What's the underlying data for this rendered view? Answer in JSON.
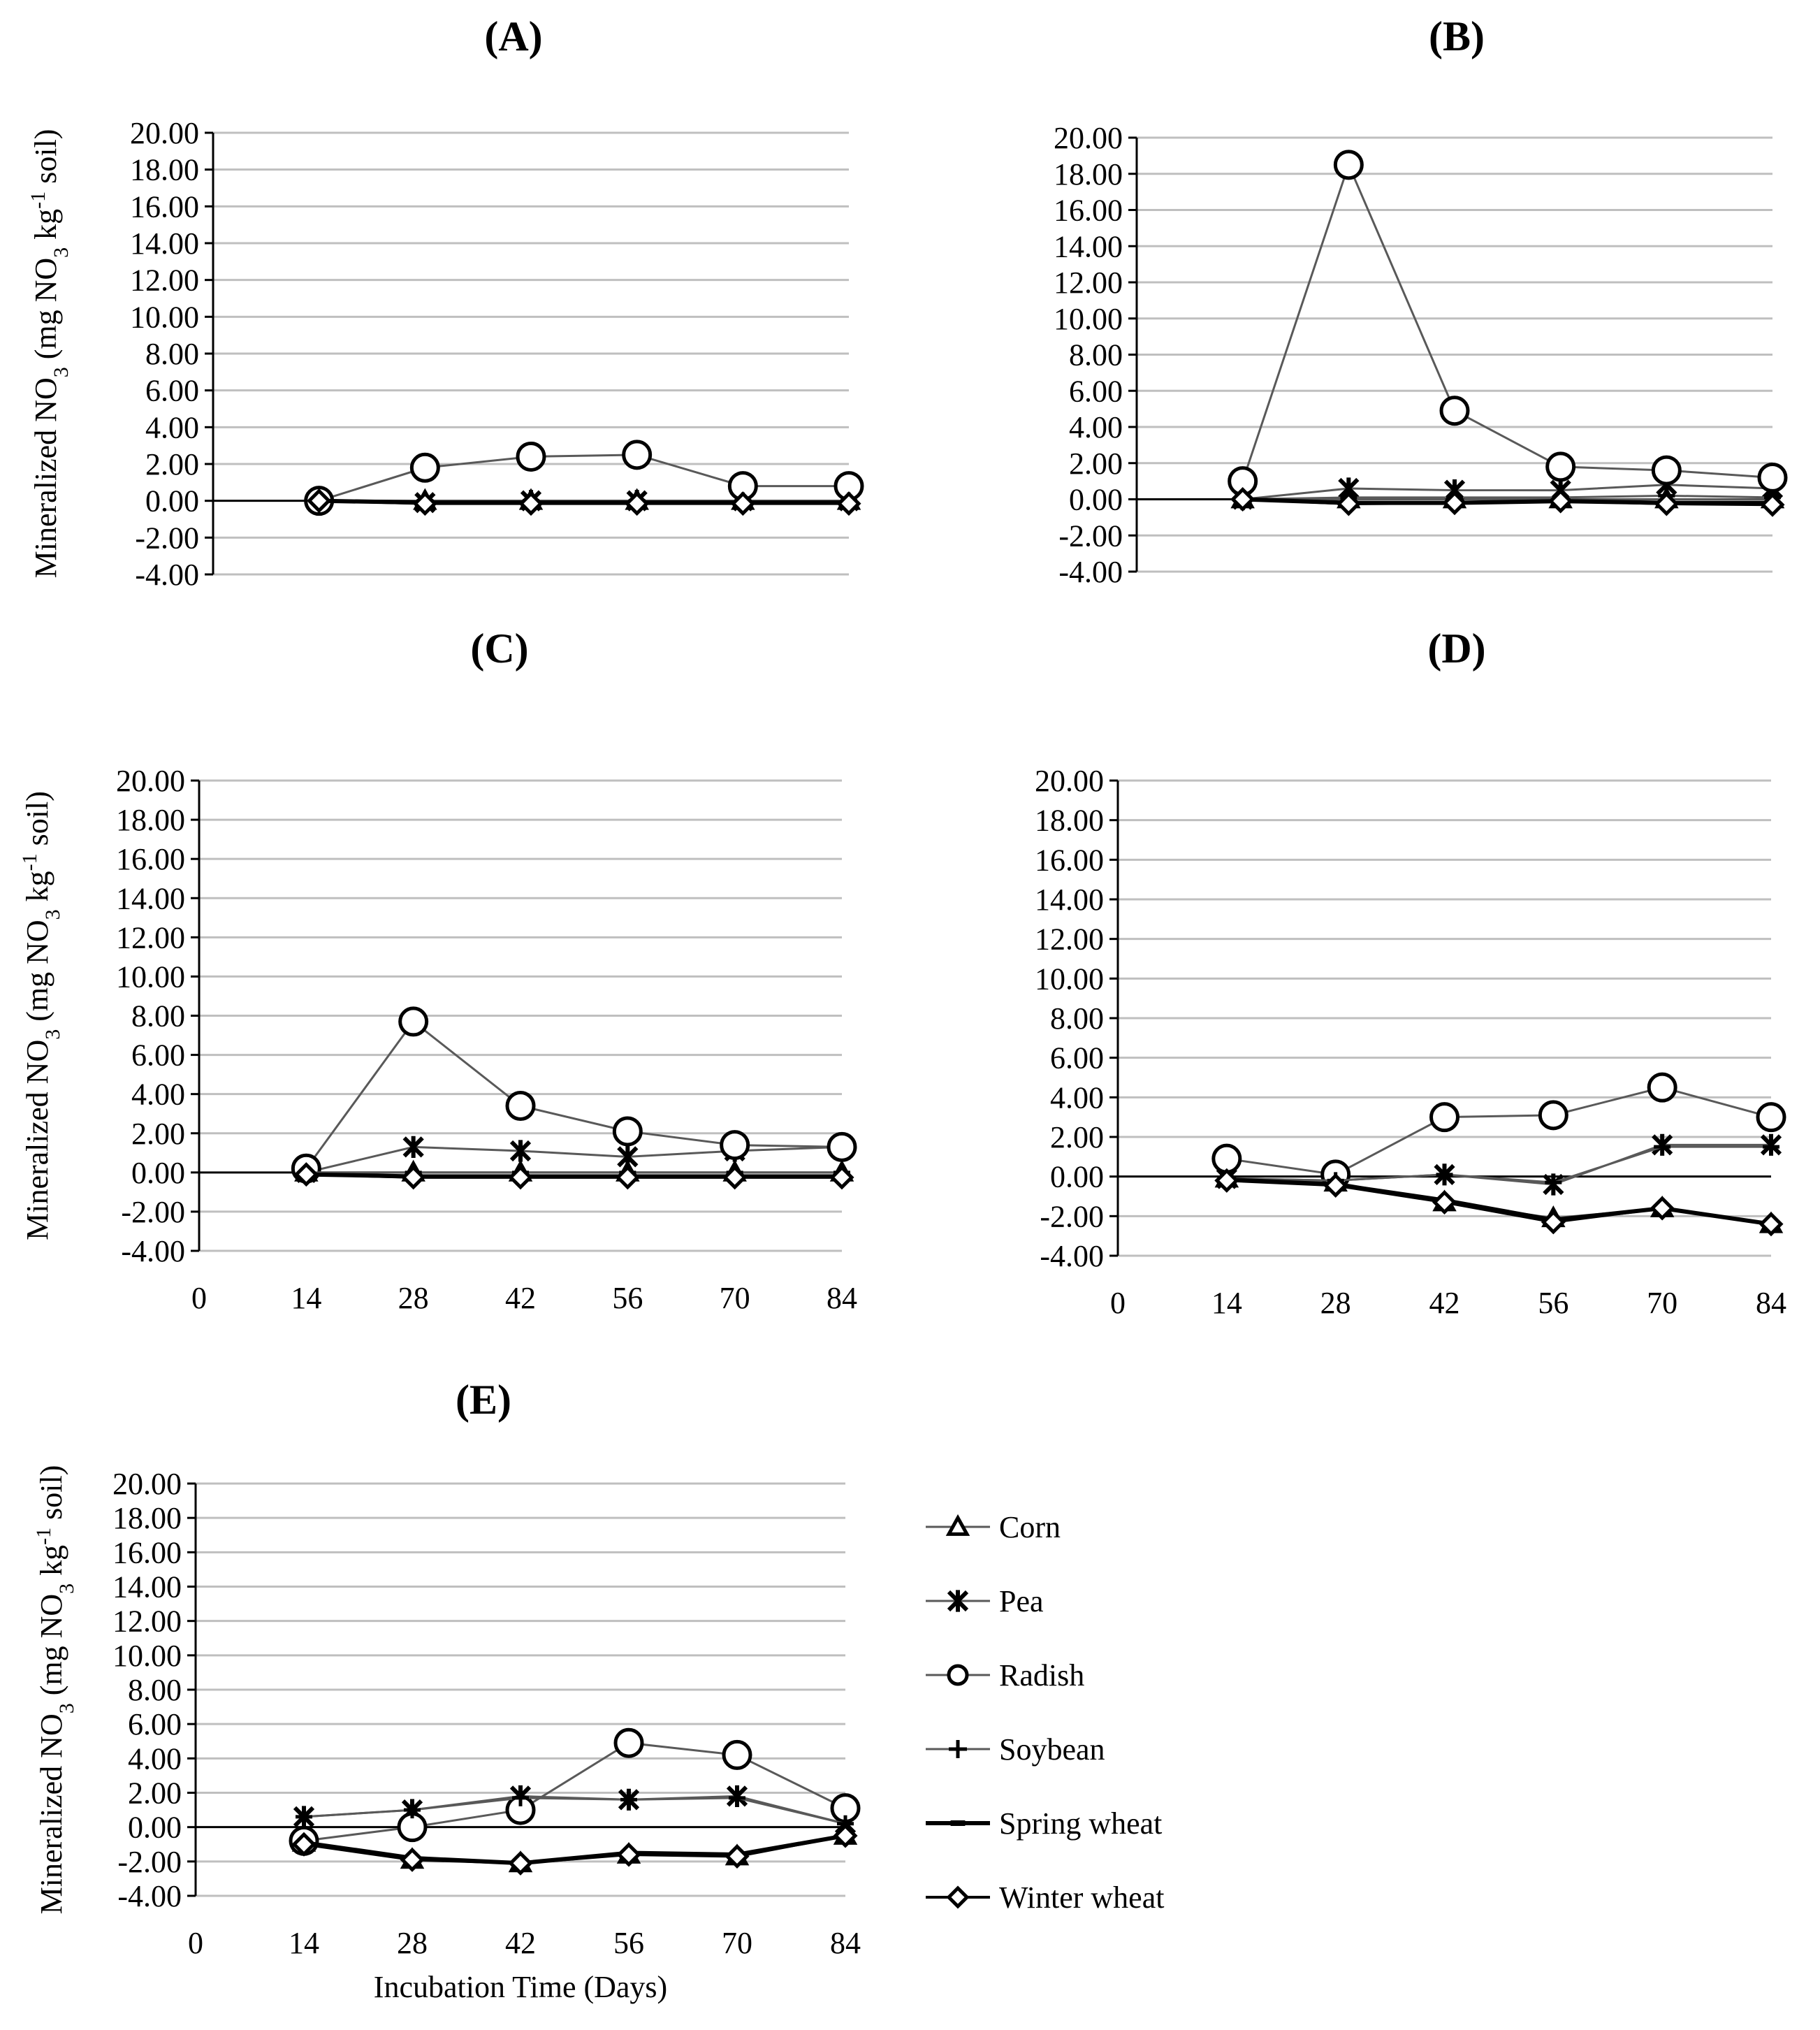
{
  "colors": {
    "series_line": "#595959",
    "axis": "#000000",
    "grid": "#bfbfbf",
    "marker_fill": "#ffffff"
  },
  "chart_data": [
    {
      "id": "A",
      "type": "line",
      "title": "(A)",
      "ylabel": "Mineralized NO3 (mg NO3 kg-1 soil)",
      "xlabel": "",
      "ylim": [
        -4,
        20
      ],
      "ystep": 2,
      "yticks": [
        "20.00",
        "18.00",
        "16.00",
        "14.00",
        "12.00",
        "10.00",
        "8.00",
        "6.00",
        "4.00",
        "2.00",
        "0.00",
        "-2.00",
        "-4.00"
      ],
      "x": [
        14,
        28,
        42,
        56,
        70,
        84
      ],
      "xticks": [],
      "series": [
        {
          "name": "Corn",
          "values": [
            0.0,
            0.0,
            0.0,
            0.0,
            0.0,
            0.0
          ]
        },
        {
          "name": "Pea",
          "values": [
            0.0,
            -0.1,
            0.0,
            0.0,
            0.0,
            0.0
          ]
        },
        {
          "name": "Radish",
          "values": [
            0.0,
            1.8,
            2.4,
            2.5,
            0.8,
            0.8
          ]
        },
        {
          "name": "Soybean",
          "values": [
            0.0,
            0.0,
            0.0,
            0.0,
            0.0,
            0.0
          ]
        },
        {
          "name": "Spring wheat",
          "values": [
            0.0,
            -0.1,
            -0.1,
            -0.1,
            -0.1,
            -0.1
          ]
        },
        {
          "name": "Winter wheat",
          "values": [
            0.0,
            -0.15,
            -0.15,
            -0.15,
            -0.15,
            -0.15
          ]
        }
      ]
    },
    {
      "id": "B",
      "type": "line",
      "title": "(B)",
      "ylabel": "",
      "xlabel": "",
      "ylim": [
        -4,
        20
      ],
      "ystep": 2,
      "yticks": [
        "20.00",
        "18.00",
        "16.00",
        "14.00",
        "12.00",
        "10.00",
        "8.00",
        "6.00",
        "4.00",
        "2.00",
        "0.00",
        "-2.00",
        "-4.00"
      ],
      "x": [
        14,
        28,
        42,
        56,
        70,
        84
      ],
      "xticks": [],
      "series": [
        {
          "name": "Corn",
          "values": [
            0.0,
            0.0,
            0.0,
            0.0,
            0.0,
            0.0
          ]
        },
        {
          "name": "Pea",
          "values": [
            0.0,
            0.6,
            0.5,
            0.5,
            0.8,
            0.6
          ]
        },
        {
          "name": "Radish",
          "values": [
            1.0,
            18.5,
            4.9,
            1.8,
            1.6,
            1.2
          ]
        },
        {
          "name": "Soybean",
          "values": [
            0.0,
            0.1,
            0.1,
            0.1,
            0.2,
            0.1
          ]
        },
        {
          "name": "Spring wheat",
          "values": [
            0.0,
            -0.2,
            -0.2,
            -0.1,
            -0.2,
            -0.2
          ]
        },
        {
          "name": "Winter wheat",
          "values": [
            0.0,
            -0.25,
            -0.2,
            -0.1,
            -0.25,
            -0.3
          ]
        }
      ]
    },
    {
      "id": "C",
      "type": "line",
      "title": "(C)",
      "ylabel": "Mineralized NO3 (mg NO3 kg-1 soil)",
      "xlabel": "",
      "ylim": [
        -4,
        20
      ],
      "ystep": 2,
      "yticks": [
        "20.00",
        "18.00",
        "16.00",
        "14.00",
        "12.00",
        "10.00",
        "8.00",
        "6.00",
        "4.00",
        "2.00",
        "0.00",
        "-2.00",
        "-4.00"
      ],
      "x": [
        14,
        28,
        42,
        56,
        70,
        84
      ],
      "xticks": [
        "0",
        "14",
        "28",
        "42",
        "56",
        "70",
        "84"
      ],
      "series": [
        {
          "name": "Corn",
          "values": [
            0.0,
            0.0,
            0.0,
            0.0,
            0.0,
            0.0
          ]
        },
        {
          "name": "Pea",
          "values": [
            0.0,
            1.3,
            1.1,
            0.8,
            1.1,
            1.3
          ]
        },
        {
          "name": "Radish",
          "values": [
            0.2,
            7.7,
            3.4,
            2.1,
            1.4,
            1.3
          ]
        },
        {
          "name": "Soybean",
          "values": [
            0.0,
            0.0,
            0.0,
            0.0,
            0.0,
            0.0
          ]
        },
        {
          "name": "Spring wheat",
          "values": [
            -0.1,
            -0.2,
            -0.2,
            -0.2,
            -0.2,
            -0.2
          ]
        },
        {
          "name": "Winter wheat",
          "values": [
            -0.1,
            -0.25,
            -0.25,
            -0.25,
            -0.25,
            -0.25
          ]
        }
      ]
    },
    {
      "id": "D",
      "type": "line",
      "title": "(D)",
      "ylabel": "",
      "xlabel": "",
      "ylim": [
        -4,
        20
      ],
      "ystep": 2,
      "yticks": [
        "20.00",
        "18.00",
        "16.00",
        "14.00",
        "12.00",
        "10.00",
        "8.00",
        "6.00",
        "4.00",
        "2.00",
        "0.00",
        "-2.00",
        "-4.00"
      ],
      "x": [
        14,
        28,
        42,
        56,
        70,
        84
      ],
      "xticks": [
        "0",
        "14",
        "28",
        "42",
        "56",
        "70",
        "84"
      ],
      "series": [
        {
          "name": "Corn",
          "values": [
            -0.1,
            -0.3,
            -1.3,
            -2.1,
            -1.6,
            -2.4
          ]
        },
        {
          "name": "Pea",
          "values": [
            -0.1,
            -0.2,
            0.1,
            -0.4,
            1.6,
            1.6
          ]
        },
        {
          "name": "Radish",
          "values": [
            0.9,
            0.1,
            3.0,
            3.1,
            4.5,
            3.0
          ]
        },
        {
          "name": "Soybean",
          "values": [
            -0.1,
            -0.2,
            0.1,
            -0.3,
            1.5,
            1.5
          ]
        },
        {
          "name": "Spring wheat",
          "values": [
            -0.15,
            -0.4,
            -1.2,
            -2.2,
            -1.6,
            -2.4
          ]
        },
        {
          "name": "Winter wheat",
          "values": [
            -0.2,
            -0.45,
            -1.3,
            -2.3,
            -1.6,
            -2.4
          ]
        }
      ]
    },
    {
      "id": "E",
      "type": "line",
      "title": "(E)",
      "ylabel": "Mineralized NO3 (mg NO3 kg-1 soil)",
      "xlabel": "Incubation Time (Days)",
      "ylim": [
        -4,
        20
      ],
      "ystep": 2,
      "yticks": [
        "20.00",
        "18.00",
        "16.00",
        "14.00",
        "12.00",
        "10.00",
        "8.00",
        "6.00",
        "4.00",
        "2.00",
        "0.00",
        "-2.00",
        "-4.00"
      ],
      "x": [
        14,
        28,
        42,
        56,
        70,
        84
      ],
      "xticks": [
        "0",
        "14",
        "28",
        "42",
        "56",
        "70",
        "84"
      ],
      "series": [
        {
          "name": "Corn",
          "values": [
            -0.9,
            -1.9,
            -2.1,
            -1.6,
            -1.7,
            -0.5
          ]
        },
        {
          "name": "Pea",
          "values": [
            0.6,
            1.0,
            1.8,
            1.6,
            1.8,
            0.2
          ]
        },
        {
          "name": "Radish",
          "values": [
            -0.8,
            0.0,
            1.0,
            4.9,
            4.2,
            1.1
          ]
        },
        {
          "name": "Soybean",
          "values": [
            0.6,
            1.0,
            1.7,
            1.6,
            1.7,
            0.2
          ]
        },
        {
          "name": "Spring wheat",
          "values": [
            -0.9,
            -1.8,
            -2.1,
            -1.5,
            -1.6,
            -0.5
          ]
        },
        {
          "name": "Winter wheat",
          "values": [
            -1.0,
            -1.9,
            -2.1,
            -1.6,
            -1.7,
            -0.5
          ]
        }
      ]
    }
  ],
  "legend": {
    "placement": "right of panel E",
    "items": [
      {
        "label": "Corn",
        "marker": "triangle"
      },
      {
        "label": "Pea",
        "marker": "star"
      },
      {
        "label": "Radish",
        "marker": "circle"
      },
      {
        "label": "Soybean",
        "marker": "plus"
      },
      {
        "label": "Spring wheat",
        "marker": "dash"
      },
      {
        "label": "Winter wheat",
        "marker": "diamond"
      }
    ]
  }
}
